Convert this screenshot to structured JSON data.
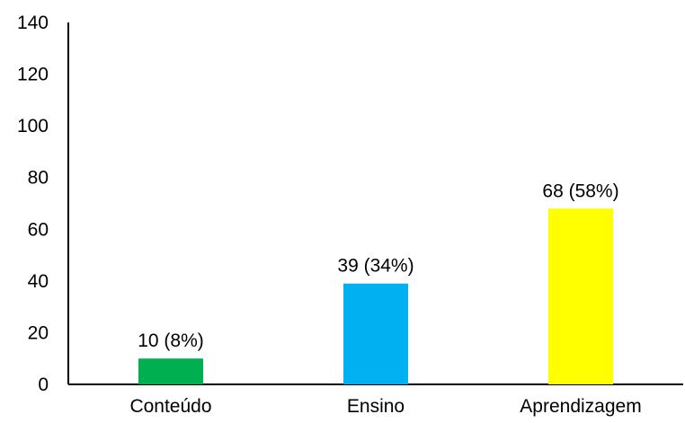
{
  "chart_data": {
    "type": "bar",
    "categories": [
      "Conteúdo",
      "Ensino",
      "Aprendizagem"
    ],
    "values": [
      10,
      39,
      68
    ],
    "data_labels": [
      "10 (8%)",
      "39 (34%)",
      "68 (58%)"
    ],
    "colors": [
      "#00b050",
      "#00b0f0",
      "#ffff00"
    ],
    "title": "",
    "xlabel": "",
    "ylabel": "",
    "ylim": [
      0,
      140
    ],
    "yticks": [
      0,
      20,
      40,
      60,
      80,
      100,
      120,
      140
    ],
    "grid": false,
    "legend": "none"
  }
}
